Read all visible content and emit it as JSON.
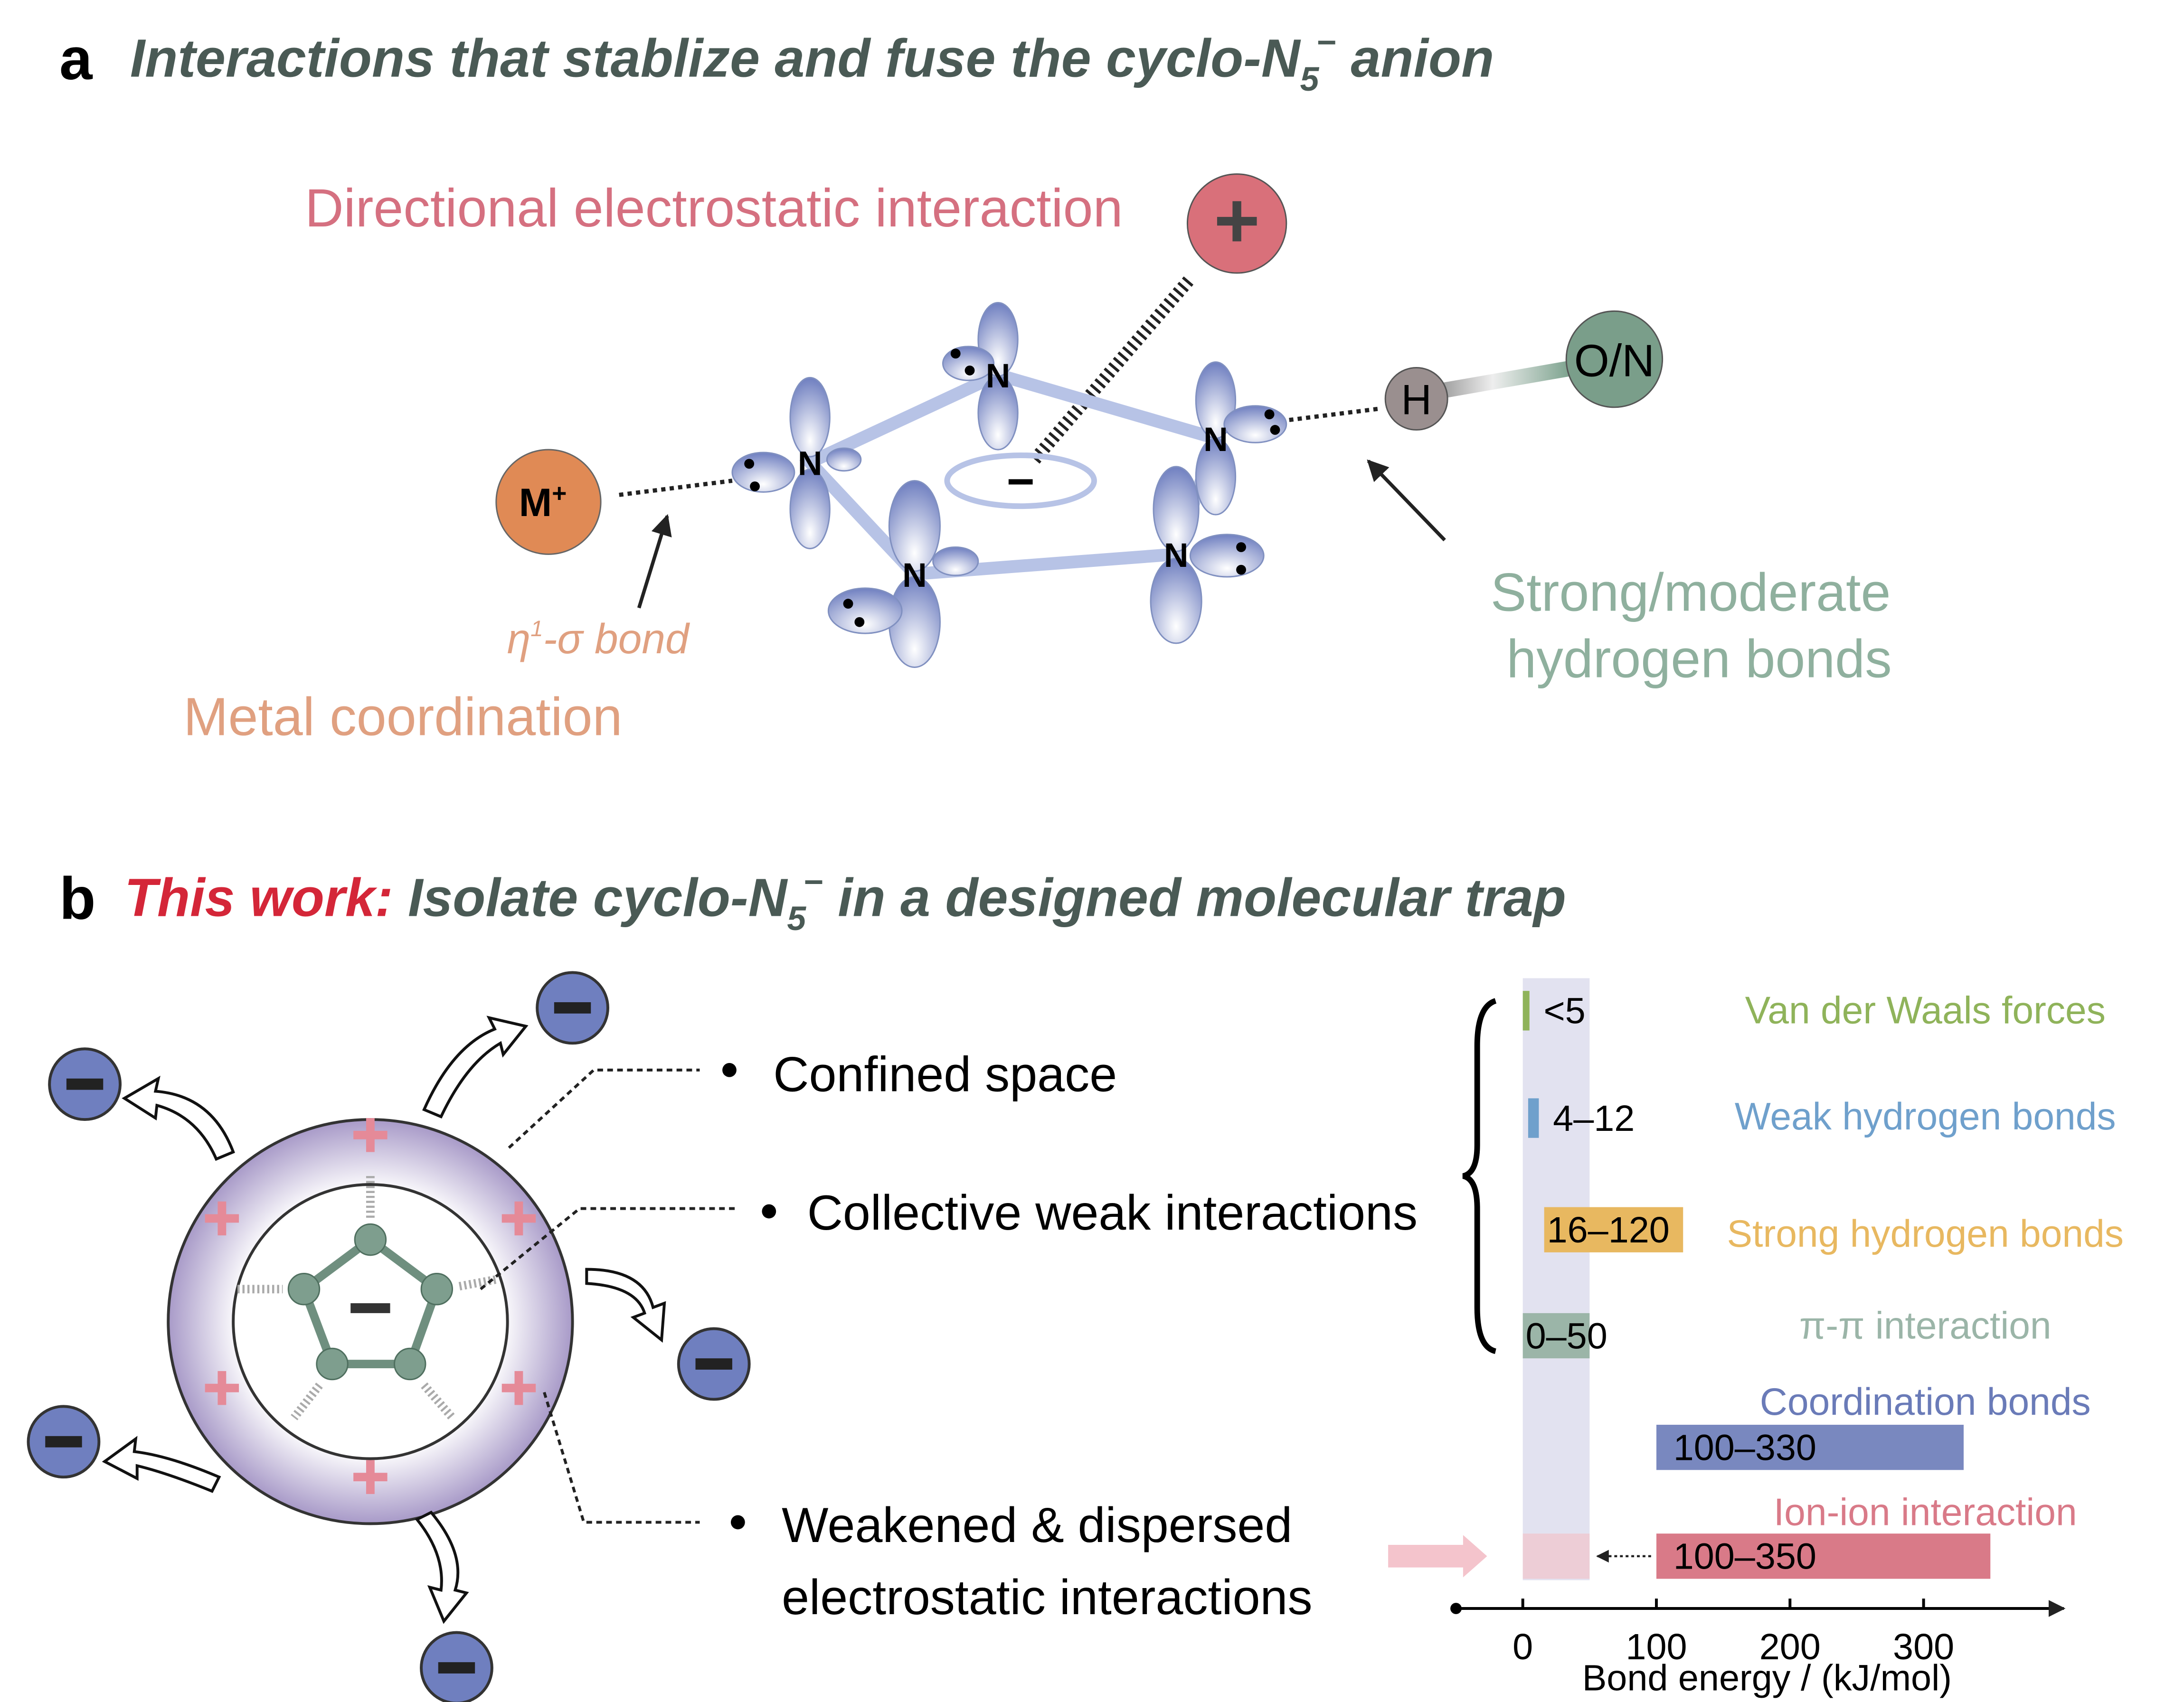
{
  "panel_a": {
    "letter": "a",
    "title": {
      "main": "Interactions that stablize and fuse the cyclo-N",
      "sub": "5",
      "sup": "−",
      "end": " anion"
    },
    "directional": "Directional electrostatic interaction",
    "cation": "+",
    "atom": "N",
    "ring_charge": "−",
    "metal": {
      "symbol": "M",
      "charge": "+"
    },
    "bond_type": {
      "eta": "η",
      "sup": "1",
      "rest": "-σ bond"
    },
    "metal_label": "Metal coordination",
    "hydrogen": "H",
    "donor": "O/N",
    "hbond_label": [
      "Strong/moderate",
      "hydrogen bonds"
    ]
  },
  "panel_b": {
    "letter": "b",
    "title": {
      "highlight": "This work:",
      "main": " Isolate cyclo-N",
      "sub": "5",
      "sup": "−",
      "end": " in a designed molecular trap"
    },
    "features": [
      [
        "Confined space"
      ],
      [
        "Collective weak interactions"
      ],
      [
        "Weakened & dispersed",
        "electrostatic interactions"
      ]
    ],
    "chart_data": {
      "type": "range-bar",
      "xlabel": "Bond energy / (kJ/mol)",
      "xlim": [
        -50,
        405
      ],
      "xticks": [
        0,
        100,
        200,
        300
      ],
      "highlight": [
        0,
        50
      ],
      "series": [
        {
          "name": "Van der Waals forces",
          "color": "#8fb35a",
          "values": [
            0,
            5
          ],
          "value_label": "<5"
        },
        {
          "name": "Weak hydrogen bonds",
          "color": "#6fa0cc",
          "values": [
            4,
            12
          ],
          "value_label": "4–12"
        },
        {
          "name": "Strong hydrogen bonds",
          "color": "#e8b860",
          "values": [
            16,
            120
          ],
          "value_label": "16–120"
        },
        {
          "name": "π-π interaction",
          "color": "#9bb5a8",
          "values": [
            0,
            50
          ],
          "value_label": "0–50"
        },
        {
          "name": "Coordination bonds",
          "color": "#6a7bb8",
          "values": [
            100,
            330
          ],
          "value_label": "100–330"
        },
        {
          "name": "Ion-ion interaction",
          "color": "#d97a88",
          "values": [
            100,
            350
          ],
          "value_label": "100–350"
        }
      ]
    }
  }
}
